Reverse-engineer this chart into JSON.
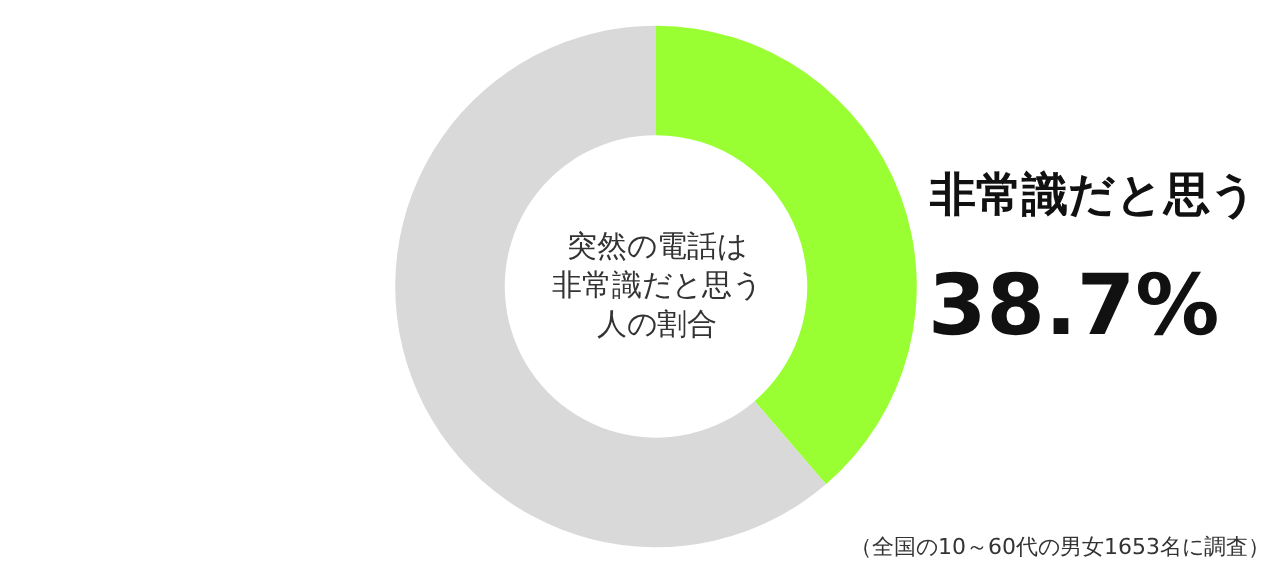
{
  "chart_data": {
    "type": "donut",
    "title": "突然の電話は非常識だと思う人の割合",
    "categories": [
      "非常識だと思う",
      null
    ],
    "values": [
      38.7,
      61.3
    ],
    "value_labels": [
      "38.7%",
      null
    ],
    "colors": [
      "#99ff33",
      "#d9d9d9"
    ],
    "legend": false,
    "annotations": [
      "（全国の10～60代の男女1653名に調査）"
    ]
  }
}
